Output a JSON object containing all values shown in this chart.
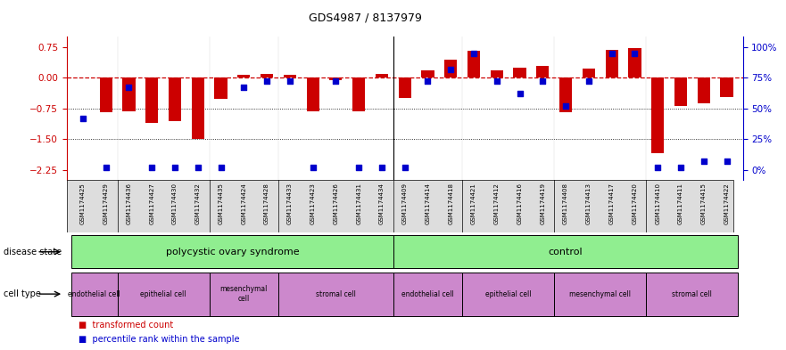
{
  "title": "GDS4987 / 8137979",
  "samples": [
    "GSM1174425",
    "GSM1174429",
    "GSM1174436",
    "GSM1174427",
    "GSM1174430",
    "GSM1174432",
    "GSM1174435",
    "GSM1174424",
    "GSM1174428",
    "GSM1174433",
    "GSM1174423",
    "GSM1174426",
    "GSM1174431",
    "GSM1174434",
    "GSM1174409",
    "GSM1174414",
    "GSM1174418",
    "GSM1174421",
    "GSM1174412",
    "GSM1174416",
    "GSM1174419",
    "GSM1174408",
    "GSM1174413",
    "GSM1174417",
    "GSM1174420",
    "GSM1174410",
    "GSM1174411",
    "GSM1174415",
    "GSM1174422"
  ],
  "bar_values": [
    0.0,
    -0.85,
    -0.82,
    -1.1,
    -1.05,
    -1.5,
    -0.52,
    0.08,
    0.1,
    0.07,
    -0.82,
    -0.06,
    -0.82,
    0.1,
    -0.5,
    0.18,
    0.45,
    0.65,
    0.18,
    0.25,
    0.28,
    -0.85,
    0.22,
    0.68,
    0.72,
    -1.85,
    -0.68,
    -0.62,
    -0.48
  ],
  "blue_pct": [
    42,
    2,
    67,
    2,
    2,
    2,
    2,
    67,
    72,
    72,
    2,
    72,
    2,
    2,
    2,
    72,
    82,
    95,
    72,
    62,
    72,
    52,
    72,
    95,
    95,
    2,
    2,
    7,
    7
  ],
  "ylim": [
    -2.5,
    1.0
  ],
  "yticks_left": [
    0.75,
    0.0,
    -0.75,
    -1.5,
    -2.25
  ],
  "yticks_right_pct": [
    100,
    75,
    50,
    25,
    0
  ],
  "bar_color": "#CC0000",
  "blue_color": "#0000CC",
  "zero_line_color": "#CC0000",
  "background_color": "#FFFFFF",
  "disease_state_label": "disease state",
  "cell_type_label": "cell type",
  "legend_red_label": "transformed count",
  "legend_blue_label": "percentile rank within the sample",
  "ds_groups": [
    {
      "label": "polycystic ovary syndrome",
      "start": 0,
      "end": 13,
      "color": "#90EE90"
    },
    {
      "label": "control",
      "start": 14,
      "end": 28,
      "color": "#90EE90"
    }
  ],
  "ct_groups": [
    {
      "label": "endothelial cell",
      "start": 0,
      "end": 1,
      "color": "#CC88CC"
    },
    {
      "label": "epithelial cell",
      "start": 2,
      "end": 5,
      "color": "#CC88CC"
    },
    {
      "label": "mesenchymal\ncell",
      "start": 6,
      "end": 8,
      "color": "#CC88CC"
    },
    {
      "label": "stromal cell",
      "start": 9,
      "end": 13,
      "color": "#CC88CC"
    },
    {
      "label": "endothelial cell",
      "start": 14,
      "end": 16,
      "color": "#CC88CC"
    },
    {
      "label": "epithelial cell",
      "start": 17,
      "end": 20,
      "color": "#CC88CC"
    },
    {
      "label": "mesenchymal cell",
      "start": 21,
      "end": 24,
      "color": "#CC88CC"
    },
    {
      "label": "stromal cell",
      "start": 25,
      "end": 28,
      "color": "#CC88CC"
    }
  ]
}
